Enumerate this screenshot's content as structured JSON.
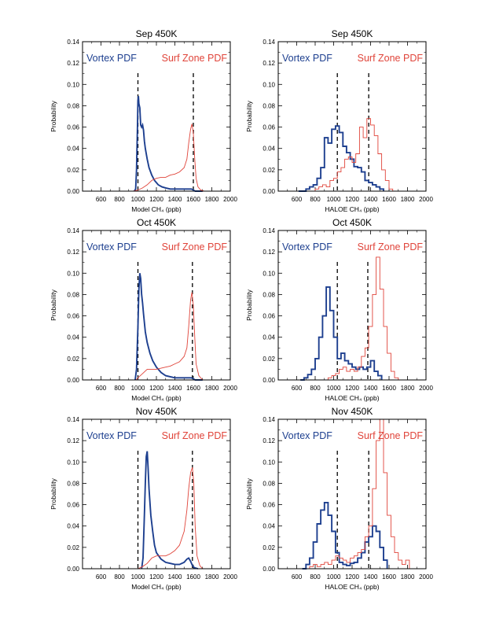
{
  "colors": {
    "vortex": "#1d3f8f",
    "surf": "#e0443a",
    "frame": "#000000"
  },
  "chart_data": [
    {
      "type": "line",
      "title": "Sep 450K",
      "xlabel": "Model CH₄ (ppb)",
      "ylabel": "Probability",
      "xlim": [
        400,
        2000
      ],
      "ylim": [
        0,
        0.14
      ],
      "xticks": [
        600,
        800,
        1000,
        1200,
        1400,
        1600,
        1800,
        2000
      ],
      "yticks": [
        0.0,
        0.02,
        0.04,
        0.06,
        0.08,
        0.1,
        0.12,
        0.14
      ],
      "dashed_x": [
        1000,
        1600
      ],
      "series": [
        {
          "name": "Vortex PDF",
          "color": "vortex",
          "step": false,
          "x": [
            960,
            975,
            985,
            995,
            1000,
            1005,
            1010,
            1020,
            1030,
            1040,
            1050,
            1060,
            1070,
            1080,
            1100,
            1120,
            1150,
            1180,
            1220,
            1260,
            1300,
            1350,
            1400,
            1450,
            1500,
            1550,
            1580,
            1600,
            1620,
            1700
          ],
          "y": [
            0,
            0.002,
            0.02,
            0.06,
            0.085,
            0.089,
            0.082,
            0.078,
            0.062,
            0.06,
            0.062,
            0.057,
            0.047,
            0.04,
            0.03,
            0.022,
            0.015,
            0.01,
            0.006,
            0.004,
            0.003,
            0.002,
            0.002,
            0.002,
            0.002,
            0.002,
            0.002,
            0.001,
            0.0,
            0.0
          ]
        },
        {
          "name": "Surf Zone PDF",
          "color": "surf",
          "step": false,
          "x": [
            400,
            950,
            1000,
            1050,
            1100,
            1150,
            1200,
            1250,
            1300,
            1350,
            1400,
            1450,
            1500,
            1530,
            1550,
            1570,
            1585,
            1600,
            1615,
            1630,
            1650,
            1680,
            1720,
            1800,
            2000
          ],
          "y": [
            0,
            0,
            0.001,
            0.003,
            0.006,
            0.01,
            0.012,
            0.013,
            0.013,
            0.015,
            0.016,
            0.018,
            0.022,
            0.03,
            0.045,
            0.058,
            0.063,
            0.054,
            0.03,
            0.012,
            0.004,
            0.001,
            0,
            0,
            0
          ]
        }
      ],
      "legend": [
        "Vortex PDF",
        "Surf Zone PDF"
      ]
    },
    {
      "type": "line",
      "title": "Sep 450K",
      "xlabel": "HALOE CH₄ (ppb)",
      "ylabel": "Probability",
      "xlim": [
        400,
        2000
      ],
      "ylim": [
        0,
        0.14
      ],
      "xticks": [
        600,
        800,
        1000,
        1200,
        1400,
        1600,
        1800,
        2000
      ],
      "yticks": [
        0.0,
        0.02,
        0.04,
        0.06,
        0.08,
        0.1,
        0.12,
        0.14
      ],
      "dashed_x": [
        1040,
        1380
      ],
      "series": [
        {
          "name": "Vortex PDF",
          "color": "vortex",
          "step": true,
          "x": [
            620,
            660,
            700,
            740,
            780,
            820,
            860,
            900,
            940,
            980,
            1020,
            1060,
            1100,
            1140,
            1180,
            1220,
            1260,
            1300,
            1340,
            1380,
            1420,
            1460,
            1500,
            1540
          ],
          "y": [
            0.0,
            0.0,
            0.002,
            0.004,
            0.006,
            0.012,
            0.022,
            0.05,
            0.045,
            0.058,
            0.061,
            0.055,
            0.042,
            0.036,
            0.03,
            0.023,
            0.022,
            0.018,
            0.01,
            0.008,
            0.006,
            0.004,
            0.002,
            0.0
          ]
        },
        {
          "name": "Surf Zone PDF",
          "color": "surf",
          "step": true,
          "x": [
            760,
            800,
            840,
            880,
            920,
            960,
            1000,
            1040,
            1080,
            1120,
            1160,
            1200,
            1240,
            1280,
            1320,
            1360,
            1400,
            1440,
            1480,
            1520,
            1560,
            1600,
            1640
          ],
          "y": [
            0.0,
            0.002,
            0.004,
            0.006,
            0.004,
            0.01,
            0.012,
            0.018,
            0.022,
            0.03,
            0.032,
            0.027,
            0.035,
            0.06,
            0.05,
            0.068,
            0.062,
            0.052,
            0.035,
            0.02,
            0.01,
            0.002,
            0.0
          ]
        }
      ],
      "legend": [
        "Vortex PDF",
        "Surf Zone PDF"
      ]
    },
    {
      "type": "line",
      "title": "Oct 450K",
      "xlabel": "Model CH₄ (ppb)",
      "ylabel": "Probability",
      "xlim": [
        400,
        2000
      ],
      "ylim": [
        0,
        0.14
      ],
      "xticks": [
        600,
        800,
        1000,
        1200,
        1400,
        1600,
        1800,
        2000
      ],
      "yticks": [
        0.0,
        0.02,
        0.04,
        0.06,
        0.08,
        0.1,
        0.12,
        0.14
      ],
      "dashed_x": [
        1000,
        1590
      ],
      "series": [
        {
          "name": "Vortex PDF",
          "color": "vortex",
          "step": false,
          "x": [
            970,
            985,
            1000,
            1010,
            1020,
            1030,
            1040,
            1050,
            1060,
            1080,
            1100,
            1130,
            1160,
            1200,
            1250,
            1300,
            1400,
            1500,
            1550,
            1580,
            1600,
            1620,
            1700
          ],
          "y": [
            0,
            0.01,
            0.05,
            0.085,
            0.1,
            0.095,
            0.08,
            0.072,
            0.062,
            0.045,
            0.035,
            0.025,
            0.018,
            0.012,
            0.007,
            0.004,
            0.002,
            0.002,
            0.002,
            0.002,
            0.001,
            0,
            0
          ]
        },
        {
          "name": "Surf Zone PDF",
          "color": "surf",
          "step": false,
          "x": [
            400,
            980,
            1000,
            1050,
            1100,
            1150,
            1200,
            1250,
            1300,
            1350,
            1400,
            1450,
            1500,
            1530,
            1550,
            1570,
            1585,
            1600,
            1615,
            1630,
            1660,
            1700,
            2000
          ],
          "y": [
            0,
            0,
            0.002,
            0.006,
            0.01,
            0.01,
            0.01,
            0.011,
            0.012,
            0.013,
            0.015,
            0.017,
            0.022,
            0.03,
            0.05,
            0.075,
            0.082,
            0.07,
            0.04,
            0.015,
            0.004,
            0,
            0
          ]
        }
      ],
      "legend": [
        "Vortex PDF",
        "Surf Zone PDF"
      ]
    },
    {
      "type": "line",
      "title": "Oct 450K",
      "xlabel": "HALOE CH₄ (ppb)",
      "ylabel": "Probability",
      "xlim": [
        400,
        2000
      ],
      "ylim": [
        0,
        0.14
      ],
      "xticks": [
        600,
        800,
        1000,
        1200,
        1400,
        1600,
        1800,
        2000
      ],
      "yticks": [
        0.0,
        0.02,
        0.04,
        0.06,
        0.08,
        0.1,
        0.12,
        0.14
      ],
      "dashed_x": [
        1040,
        1370
      ],
      "series": [
        {
          "name": "Vortex PDF",
          "color": "vortex",
          "step": true,
          "x": [
            640,
            680,
            720,
            760,
            800,
            840,
            880,
            920,
            960,
            1000,
            1040,
            1080,
            1120,
            1160,
            1200,
            1240,
            1280,
            1320,
            1360,
            1400,
            1440,
            1480,
            1520
          ],
          "y": [
            0.0,
            0.002,
            0.005,
            0.01,
            0.02,
            0.04,
            0.06,
            0.087,
            0.065,
            0.04,
            0.02,
            0.025,
            0.018,
            0.015,
            0.012,
            0.01,
            0.012,
            0.01,
            0.012,
            0.018,
            0.008,
            0.004,
            0.0
          ]
        },
        {
          "name": "Surf Zone PDF",
          "color": "surf",
          "step": true,
          "x": [
            900,
            940,
            980,
            1020,
            1060,
            1100,
            1140,
            1180,
            1220,
            1260,
            1300,
            1340,
            1380,
            1420,
            1460,
            1500,
            1540,
            1580,
            1620,
            1660,
            1700
          ],
          "y": [
            0.0,
            0.002,
            0.004,
            0.006,
            0.01,
            0.012,
            0.008,
            0.01,
            0.008,
            0.012,
            0.022,
            0.03,
            0.05,
            0.08,
            0.115,
            0.085,
            0.05,
            0.025,
            0.008,
            0.002,
            0.0
          ]
        }
      ],
      "legend": [
        "Vortex PDF",
        "Surf Zone PDF"
      ]
    },
    {
      "type": "line",
      "title": "Nov 450K",
      "xlabel": "Model CH₄ (ppb)",
      "ylabel": "Probability",
      "xlim": [
        400,
        2000
      ],
      "ylim": [
        0,
        0.14
      ],
      "xticks": [
        600,
        800,
        1000,
        1200,
        1400,
        1600,
        1800,
        2000
      ],
      "yticks": [
        0.0,
        0.02,
        0.04,
        0.06,
        0.08,
        0.1,
        0.12,
        0.14
      ],
      "dashed_x": [
        1000,
        1590
      ],
      "series": [
        {
          "name": "Vortex PDF",
          "color": "vortex",
          "step": false,
          "x": [
            1040,
            1055,
            1070,
            1080,
            1090,
            1100,
            1110,
            1120,
            1140,
            1160,
            1180,
            1200,
            1250,
            1300,
            1350,
            1400,
            1450,
            1500,
            1530,
            1550,
            1570,
            1590,
            1610,
            1650
          ],
          "y": [
            0,
            0.01,
            0.05,
            0.08,
            0.105,
            0.11,
            0.095,
            0.075,
            0.05,
            0.035,
            0.022,
            0.015,
            0.009,
            0.006,
            0.005,
            0.004,
            0.004,
            0.006,
            0.009,
            0.01,
            0.007,
            0.003,
            0.001,
            0
          ]
        },
        {
          "name": "Surf Zone PDF",
          "color": "surf",
          "step": false,
          "x": [
            400,
            1000,
            1050,
            1100,
            1150,
            1200,
            1250,
            1300,
            1350,
            1400,
            1450,
            1500,
            1530,
            1550,
            1570,
            1590,
            1605,
            1620,
            1640,
            1670,
            1700,
            2000
          ],
          "y": [
            0,
            0,
            0.002,
            0.005,
            0.01,
            0.012,
            0.012,
            0.012,
            0.014,
            0.017,
            0.022,
            0.035,
            0.055,
            0.075,
            0.09,
            0.095,
            0.08,
            0.04,
            0.012,
            0.003,
            0,
            0
          ]
        }
      ],
      "legend": [
        "Vortex PDF",
        "Surf Zone PDF"
      ]
    },
    {
      "type": "line",
      "title": "Nov 450K",
      "xlabel": "HALOE CH₄ (ppb)",
      "ylabel": "Probability",
      "xlim": [
        400,
        2000
      ],
      "ylim": [
        0,
        0.14
      ],
      "xticks": [
        600,
        800,
        1000,
        1200,
        1400,
        1600,
        1800,
        2000
      ],
      "yticks": [
        0.0,
        0.02,
        0.04,
        0.06,
        0.08,
        0.1,
        0.12,
        0.14
      ],
      "dashed_x": [
        1040,
        1380
      ],
      "series": [
        {
          "name": "Vortex PDF",
          "color": "vortex",
          "step": true,
          "x": [
            660,
            700,
            740,
            780,
            820,
            860,
            900,
            940,
            980,
            1020,
            1060,
            1100,
            1140,
            1180,
            1220,
            1260,
            1300,
            1340,
            1380,
            1420,
            1460,
            1500,
            1540,
            1580
          ],
          "y": [
            0.0,
            0.004,
            0.01,
            0.025,
            0.042,
            0.055,
            0.062,
            0.05,
            0.035,
            0.015,
            0.006,
            0.004,
            0.003,
            0.005,
            0.006,
            0.01,
            0.015,
            0.025,
            0.03,
            0.04,
            0.035,
            0.02,
            0.008,
            0.0
          ]
        },
        {
          "name": "Surf Zone PDF",
          "color": "surf",
          "step": true,
          "x": [
            700,
            740,
            780,
            820,
            860,
            900,
            940,
            980,
            1020,
            1060,
            1100,
            1140,
            1180,
            1220,
            1260,
            1300,
            1340,
            1380,
            1420,
            1460,
            1500,
            1540,
            1580,
            1620,
            1660,
            1700,
            1740,
            1780,
            1820
          ],
          "y": [
            0.0,
            0.002,
            0.004,
            0.002,
            0.004,
            0.006,
            0.004,
            0.008,
            0.012,
            0.01,
            0.008,
            0.006,
            0.01,
            0.012,
            0.015,
            0.018,
            0.03,
            0.04,
            0.075,
            0.12,
            0.14,
            0.09,
            0.05,
            0.03,
            0.015,
            0.008,
            0.004,
            0.008,
            0.0
          ]
        }
      ],
      "legend": [
        "Vortex PDF",
        "Surf Zone PDF"
      ]
    }
  ]
}
